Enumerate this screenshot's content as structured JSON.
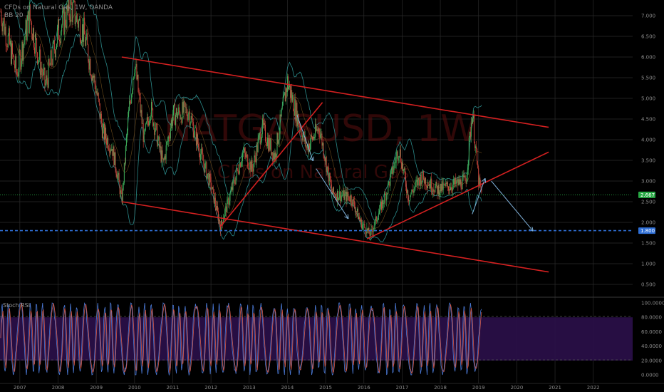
{
  "header": {
    "title": "CFDs on Natural Gas, 1W, OANDA",
    "subtitle": "BB 20"
  },
  "watermark": {
    "symbol": "NATGASUSD, 1W",
    "description": "CFDs on Natural Gas"
  },
  "price_axis": {
    "ticks": [
      "7.000",
      "6.500",
      "6.000",
      "5.500",
      "5.000",
      "4.500",
      "4.000",
      "3.500",
      "3.000",
      "2.500",
      "2.000",
      "1.500",
      "1.000",
      "0.500"
    ],
    "last_price": "2.667",
    "last_price_color": "#27a844",
    "target_level": "1.800",
    "target_color": "#2f6fd6"
  },
  "time_axis": {
    "years": [
      "2007",
      "2008",
      "2009",
      "2010",
      "2011",
      "2012",
      "2013",
      "2014",
      "2015",
      "2016",
      "2017",
      "2018",
      "2019",
      "2020",
      "2021",
      "2022"
    ]
  },
  "stoch_panel": {
    "label": "Stoch RSI",
    "ticks": [
      "100.0000",
      "80.0000",
      "60.0000",
      "40.0000",
      "20.0000",
      "0.0000"
    ],
    "band_color": "#2b0f4a"
  },
  "colors": {
    "channel_line": "#d42020",
    "candle_up": "#3fae5a",
    "candle_down": "#c9453a",
    "bollinger": "#2b8a8a",
    "arrow": "#7fb0d8",
    "grid": "#2a2a2a"
  },
  "chart_data": {
    "type": "candlestick",
    "symbol": "NATGASUSD",
    "interval": "1W",
    "x_range": [
      "2006-07",
      "2022-08"
    ],
    "y_range": [
      0.3,
      7.2
    ],
    "approx_close_path": [
      {
        "t": "2006-07",
        "v": 7.1
      },
      {
        "t": "2006-12",
        "v": 5.6
      },
      {
        "t": "2007-04",
        "v": 7.0
      },
      {
        "t": "2007-09",
        "v": 5.3
      },
      {
        "t": "2008-01",
        "v": 6.6
      },
      {
        "t": "2008-05",
        "v": 7.2
      },
      {
        "t": "2008-09",
        "v": 6.6
      },
      {
        "t": "2009-01",
        "v": 5.2
      },
      {
        "t": "2009-03",
        "v": 4.2
      },
      {
        "t": "2009-06",
        "v": 3.8
      },
      {
        "t": "2009-08",
        "v": 3.0
      },
      {
        "t": "2009-09",
        "v": 2.5
      },
      {
        "t": "2009-11",
        "v": 4.5
      },
      {
        "t": "2010-01",
        "v": 5.9
      },
      {
        "t": "2010-04",
        "v": 4.0
      },
      {
        "t": "2010-06",
        "v": 4.8
      },
      {
        "t": "2010-10",
        "v": 3.4
      },
      {
        "t": "2011-01",
        "v": 4.6
      },
      {
        "t": "2011-06",
        "v": 4.7
      },
      {
        "t": "2011-10",
        "v": 3.6
      },
      {
        "t": "2012-01",
        "v": 2.9
      },
      {
        "t": "2012-04",
        "v": 1.9
      },
      {
        "t": "2012-08",
        "v": 2.9
      },
      {
        "t": "2012-11",
        "v": 3.7
      },
      {
        "t": "2013-02",
        "v": 3.3
      },
      {
        "t": "2013-05",
        "v": 4.3
      },
      {
        "t": "2013-09",
        "v": 3.6
      },
      {
        "t": "2014-01",
        "v": 5.4
      },
      {
        "t": "2014-04",
        "v": 4.6
      },
      {
        "t": "2014-07",
        "v": 3.8
      },
      {
        "t": "2014-11",
        "v": 4.3
      },
      {
        "t": "2015-03",
        "v": 2.7
      },
      {
        "t": "2015-09",
        "v": 2.6
      },
      {
        "t": "2015-12",
        "v": 2.0
      },
      {
        "t": "2016-03",
        "v": 1.7
      },
      {
        "t": "2016-08",
        "v": 2.7
      },
      {
        "t": "2016-12",
        "v": 3.8
      },
      {
        "t": "2017-03",
        "v": 2.6
      },
      {
        "t": "2017-07",
        "v": 3.1
      },
      {
        "t": "2017-12",
        "v": 2.8
      },
      {
        "t": "2018-05",
        "v": 2.9
      },
      {
        "t": "2018-09",
        "v": 3.0
      },
      {
        "t": "2018-11",
        "v": 4.7
      },
      {
        "t": "2019-01",
        "v": 3.0
      },
      {
        "t": "2019-02",
        "v": 2.667
      }
    ],
    "trendlines": [
      {
        "name": "channel-top",
        "from": {
          "t": "2009-09",
          "v": 6.0
        },
        "to": {
          "t": "2020-11",
          "v": 4.3
        }
      },
      {
        "name": "channel-bottom",
        "from": {
          "t": "2009-09",
          "v": 2.5
        },
        "to": {
          "t": "2020-11",
          "v": 0.8
        }
      },
      {
        "name": "support-2012",
        "from": {
          "t": "2012-04",
          "v": 1.9
        },
        "to": {
          "t": "2014-12",
          "v": 4.9
        }
      },
      {
        "name": "support-2016",
        "from": {
          "t": "2016-02",
          "v": 1.6
        },
        "to": {
          "t": "2020-11",
          "v": 3.7
        }
      }
    ],
    "projection_arrows": [
      {
        "from": {
          "t": "2019-05",
          "v": 3.0
        },
        "to": {
          "t": "2020-06",
          "v": 1.8
        }
      },
      {
        "from": {
          "t": "2018-11",
          "v": 2.2
        },
        "to": {
          "t": "2019-03",
          "v": 3.05
        }
      },
      {
        "from": {
          "t": "2014-04",
          "v": 4.6
        },
        "to": {
          "t": "2014-09",
          "v": 3.5
        }
      },
      {
        "from": {
          "t": "2014-10",
          "v": 3.3
        },
        "to": {
          "t": "2015-08",
          "v": 2.1
        }
      }
    ],
    "stoch_ylim": [
      0,
      100
    ],
    "stoch_bands": [
      20,
      80
    ]
  }
}
